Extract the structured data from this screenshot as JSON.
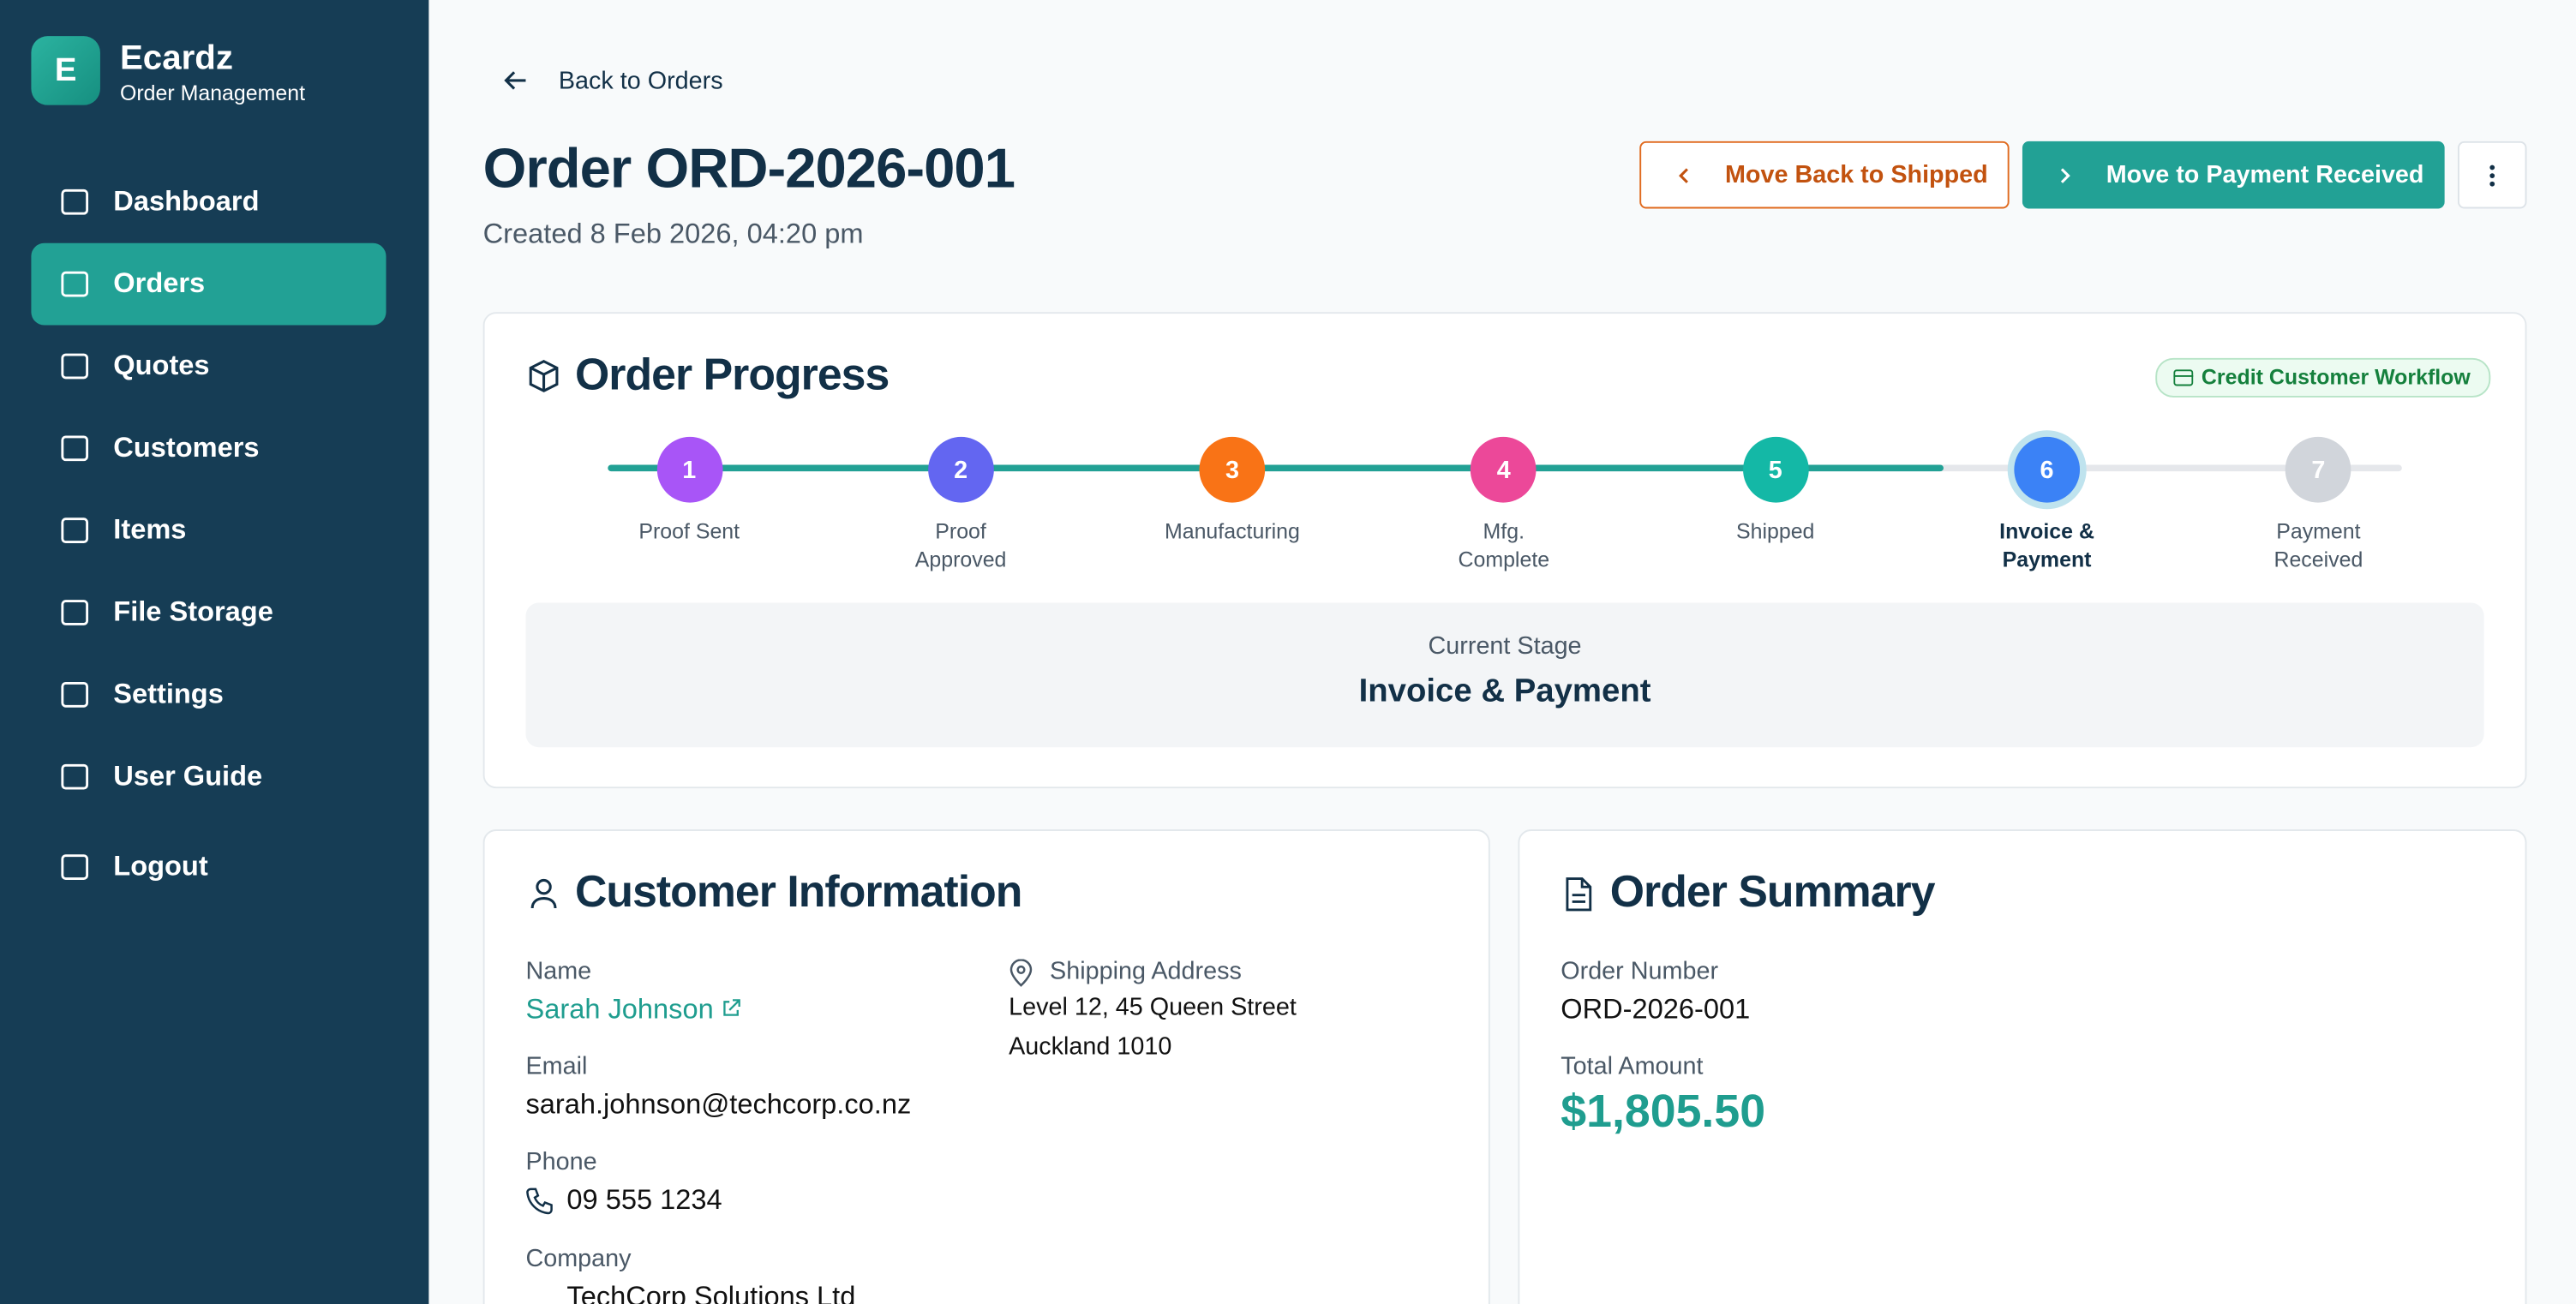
{
  "sidebar": {
    "logo": "E",
    "brand": "Ecardz",
    "subtitle": "Order Management",
    "nav": [
      "Dashboard",
      "Orders",
      "Quotes",
      "Customers",
      "Items",
      "File Storage",
      "Settings",
      "User Guide",
      "Logout"
    ],
    "active": 1
  },
  "header": {
    "back": "Back to Orders",
    "title": "Order ORD-2026-001",
    "created": "Created 8 Feb 2026, 04:20 pm",
    "actions": [
      "Move Back to Shipped",
      "Move to Payment Received"
    ]
  },
  "progress": {
    "title": "Order Progress",
    "badge": "Credit Customer Workflow",
    "current_index": 5,
    "steps": [
      {
        "number": "1",
        "label": "Proof Sent",
        "color": "#a855f7"
      },
      {
        "number": "2",
        "label": "Proof Approved",
        "color": "#6366f1"
      },
      {
        "number": "3",
        "label": "Manufacturing",
        "color": "#f97316"
      },
      {
        "number": "4",
        "label": "Mfg. Complete",
        "color": "#ec4899"
      },
      {
        "number": "5",
        "label": "Shipped",
        "color": "#14b8a6"
      },
      {
        "number": "6",
        "label": "Invoice & Payment",
        "color": "#3b82f6"
      },
      {
        "number": "7",
        "label": "Payment Received",
        "color": "#d1d5db"
      }
    ],
    "current_label": "Current Stage",
    "current": "Invoice & Payment"
  },
  "customer": {
    "title": "Customer Information",
    "name_label": "Name",
    "name": "Sarah Johnson",
    "email_label": "Email",
    "email": "sarah.johnson@techcorp.co.nz",
    "phone_label": "Phone",
    "phone": "09 555 1234",
    "company_label": "Company",
    "company": "TechCorp Solutions Ltd",
    "address_label": "Shipping Address",
    "address": [
      "Level 12, 45 Queen Street",
      "Auckland 1010"
    ]
  },
  "summary": {
    "title": "Order Summary",
    "number_label": "Order Number",
    "number": "ORD-2026-001",
    "total_label": "Total Amount",
    "total": "$1,805.50"
  }
}
